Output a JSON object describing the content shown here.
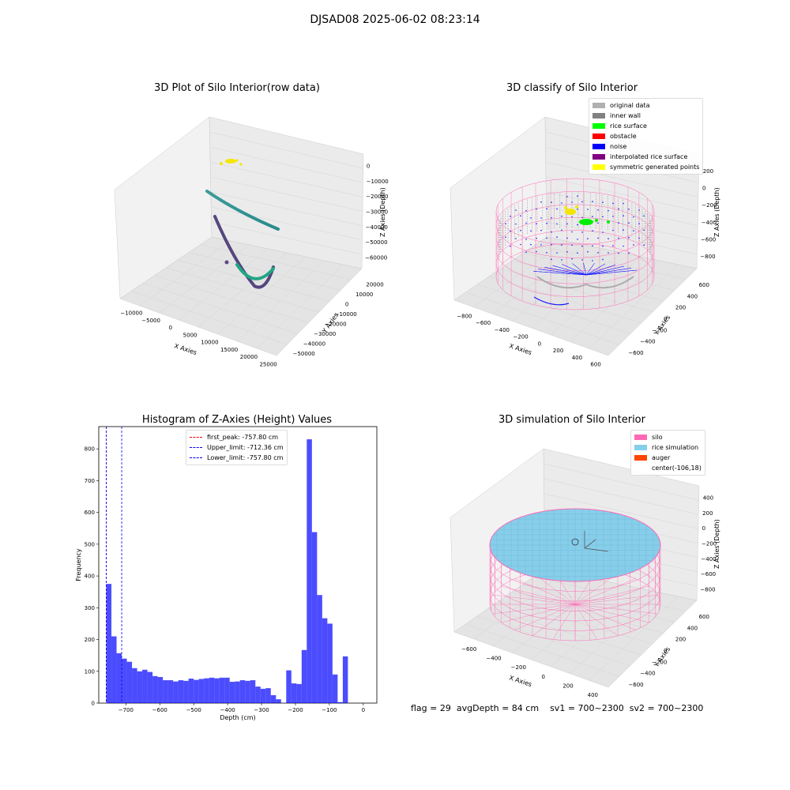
{
  "suptitle": "DJSAD08 2025-06-02 08:23:14",
  "panels": {
    "raw": {
      "title": "3D Plot of Silo Interior(row data)",
      "xlabel": "X Axies",
      "ylabel": "Y Axies",
      "zlabel": "Z Axies (Depth)",
      "xticks": [
        "−10000",
        "−5000",
        "0",
        "5000",
        "10000",
        "15000",
        "20000",
        "25000"
      ],
      "yticks": [
        "20000",
        "10000",
        "0",
        "−10000",
        "−20000",
        "−30000",
        "−40000",
        "−50000"
      ],
      "zticks": [
        "0",
        "−10000",
        "−20000",
        "−30000",
        "−40000",
        "−50000",
        "−60000"
      ]
    },
    "classify": {
      "title": "3D classify of Silo Interior",
      "xlabel": "X Axies",
      "ylabel": "Y Axies",
      "zlabel": "Z Axies (Depth)",
      "xticks": [
        "−800",
        "−600",
        "−400",
        "−200",
        "0",
        "200",
        "400",
        "600"
      ],
      "yticks": [
        "600",
        "400",
        "200",
        "0",
        "−200",
        "−400",
        "−600"
      ],
      "zticks": [
        "200",
        "0",
        "−200",
        "−400",
        "−600",
        "−800"
      ],
      "legend": [
        {
          "label": "original data",
          "color": "#b0b0b0"
        },
        {
          "label": "inner wall",
          "color": "#808080"
        },
        {
          "label": "rice surface",
          "color": "#00ff00"
        },
        {
          "label": "obstacle",
          "color": "#ff0000"
        },
        {
          "label": "noise",
          "color": "#0000ff"
        },
        {
          "label": "interpolated rice surface",
          "color": "#800080"
        },
        {
          "label": "symmetric generated points",
          "color": "#ffff00"
        }
      ]
    },
    "simulation": {
      "title": "3D simulation of Silo Interior",
      "xlabel": "X Axies",
      "ylabel": "Y Axies",
      "zlabel": "Z Axies (Depth)",
      "xticks": [
        "−600",
        "−400",
        "−200",
        "0",
        "200",
        "400"
      ],
      "yticks": [
        "600",
        "400",
        "200",
        "0",
        "−200",
        "−400",
        "−600"
      ],
      "zticks": [
        "400",
        "200",
        "0",
        "−200",
        "−400",
        "−600",
        "−800"
      ],
      "legend": [
        {
          "label": "silo",
          "color": "#ff69b4"
        },
        {
          "label": "rice simulation",
          "color": "#87ceeb"
        },
        {
          "label": "auger",
          "color": "#ff4500"
        },
        {
          "label": "center(-106,18)",
          "color": ""
        }
      ]
    }
  },
  "chart_data": {
    "type": "bar",
    "title": "Histogram of Z-Axies (Height) Values",
    "xlabel": "Depth (cm)",
    "ylabel": "Frequency",
    "xlim": [
      -780,
      40
    ],
    "ylim": [
      0,
      870
    ],
    "xticks": [
      -700,
      -600,
      -500,
      -400,
      -300,
      -200,
      -100,
      0
    ],
    "yticks": [
      0,
      100,
      200,
      300,
      400,
      500,
      600,
      700,
      800
    ],
    "bin_width": 15.16,
    "bin_start": -757.8,
    "bar_color": "#0000ff",
    "values": [
      375,
      210,
      157,
      140,
      130,
      110,
      100,
      105,
      98,
      85,
      82,
      72,
      72,
      68,
      72,
      70,
      77,
      73,
      76,
      78,
      80,
      78,
      80,
      80,
      67,
      68,
      72,
      70,
      72,
      52,
      45,
      47,
      25,
      12,
      0,
      103,
      62,
      60,
      167,
      830,
      538,
      340,
      267,
      250,
      90,
      3,
      147
    ],
    "lines": [
      {
        "label": "first_peak: -757.80 cm",
        "x": -757.8,
        "color": "#ff0000"
      },
      {
        "label": "Upper_limit: -712.36 cm",
        "x": -712.36,
        "color": "#0000ff"
      },
      {
        "label": "Lower_limit: -757.80 cm",
        "x": -757.8,
        "color": "#0000ff"
      }
    ],
    "legend_position": "top-center"
  },
  "status": {
    "flag": "flag = 29",
    "avg": "avgDepth = 84 cm",
    "sv1": "sv1 = 700~2300",
    "sv2": "sv2 = 700~2300"
  }
}
